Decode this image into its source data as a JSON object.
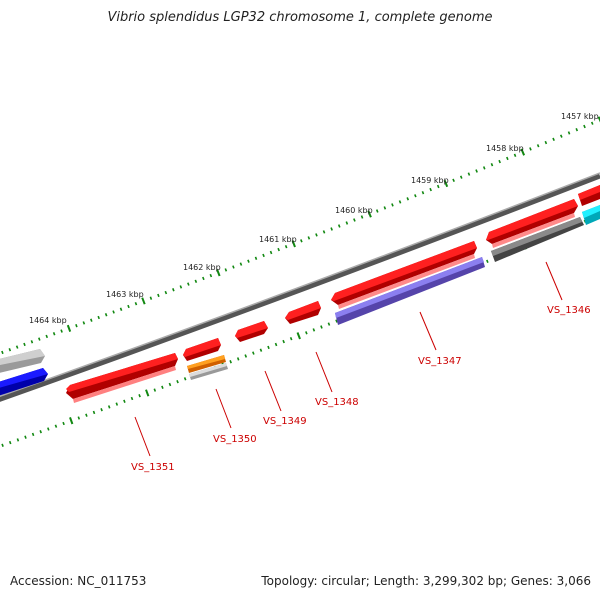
{
  "title": "Vibrio splendidus LGP32 chromosome 1, complete genome",
  "footer": {
    "accession": "Accession: NC_011753",
    "summary": "Topology: circular; Length: 3,299,302 bp; Genes: 3,066"
  },
  "colors": {
    "cds_red": "#ee1111",
    "backbone_grey": "#777777",
    "tick_green": "#118811",
    "label_red": "#cc0000",
    "blue": "#0000ee",
    "slate_blue": "#6a5acd",
    "cyan": "#00e5ee",
    "orange": "#ee8800",
    "dark_grey": "#666666",
    "light_grey": "#bbbbbb"
  },
  "scale_labels": [
    {
      "id": "1457",
      "text": "1457 kbp"
    },
    {
      "id": "1458",
      "text": "1458 kbp"
    },
    {
      "id": "1459",
      "text": "1459 kbp"
    },
    {
      "id": "1460",
      "text": "1460 kbp"
    },
    {
      "id": "1461",
      "text": "1461 kbp"
    },
    {
      "id": "1462",
      "text": "1462 kbp"
    },
    {
      "id": "1463",
      "text": "1463 kbp"
    },
    {
      "id": "1464",
      "text": "1464 kbp"
    }
  ],
  "gene_labels": [
    {
      "id": "vs1346",
      "text": "VS_1346"
    },
    {
      "id": "vs1347",
      "text": "VS_1347"
    },
    {
      "id": "vs1348",
      "text": "VS_1348"
    },
    {
      "id": "vs1349",
      "text": "VS_1349"
    },
    {
      "id": "vs1350",
      "text": "VS_1350"
    },
    {
      "id": "vs1351",
      "text": "VS_1351"
    }
  ]
}
